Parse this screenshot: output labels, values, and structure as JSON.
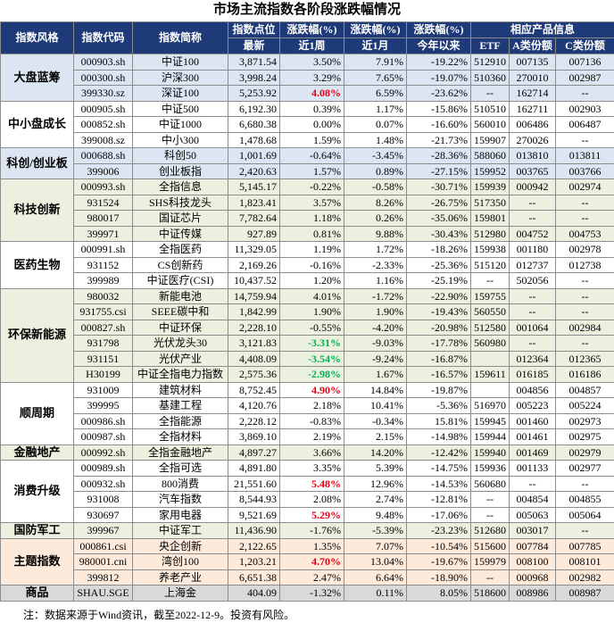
{
  "title": "市场主流指数各阶段涨跌幅情况",
  "header": {
    "style": "指数风格",
    "code": "指数代码",
    "name": "指数简称",
    "level": [
      "指数点位",
      "最新"
    ],
    "change": "涨跌幅(%)",
    "periods": [
      "近1周",
      "近1月",
      "今年以来"
    ],
    "products": "相应产品信息",
    "product_cols": [
      "ETF",
      "A类份额",
      "C类份额"
    ]
  },
  "table": {
    "groups": [
      {
        "name": "大盘蓝筹",
        "rows": [
          {
            "cells": [
              "000903.sh",
              "中证100",
              "3,871.54",
              "3.50%",
              "7.91%",
              "-19.22%",
              "512910",
              "007135",
              "007136"
            ]
          },
          {
            "cells": [
              "000300.sh",
              "沪深300",
              "3,998.24",
              "3.29%",
              "7.65%",
              "-19.07%",
              "510360",
              "270010",
              "002987"
            ]
          },
          {
            "cells": [
              "399330.sz",
              "深证100",
              "5,253.92",
              "4.08%",
              "6.59%",
              "-23.62%",
              "--",
              "162714",
              "--"
            ],
            "week_color": "#e60012"
          }
        ]
      },
      {
        "name": "中小盘成长",
        "rows": [
          {
            "cells": [
              "000905.sh",
              "中证500",
              "6,192.30",
              "0.39%",
              "1.17%",
              "-15.86%",
              "510510",
              "162711",
              "002903"
            ]
          },
          {
            "cells": [
              "000852.sh",
              "中证1000",
              "6,680.38",
              "0.00%",
              "0.07%",
              "-16.60%",
              "560010",
              "006486",
              "006487"
            ]
          },
          {
            "cells": [
              "399008.sz",
              "中小300",
              "1,478.68",
              "1.59%",
              "1.48%",
              "-21.73%",
              "159907",
              "270026",
              "--"
            ]
          }
        ]
      },
      {
        "name": "科创/创业板",
        "rows": [
          {
            "cells": [
              "000688.sh",
              "科创50",
              "1,001.69",
              "-0.64%",
              "-3.45%",
              "-28.36%",
              "588060",
              "013810",
              "013811"
            ]
          },
          {
            "cells": [
              "399006",
              "创业板指",
              "2,420.63",
              "1.57%",
              "0.89%",
              "-27.15%",
              "159952",
              "003765",
              "003766"
            ]
          }
        ]
      },
      {
        "name": "科技创新",
        "rows": [
          {
            "cells": [
              "000993.sh",
              "全指信息",
              "5,145.17",
              "-0.22%",
              "-0.58%",
              "-30.71%",
              "159939",
              "000942",
              "002974"
            ]
          },
          {
            "cells": [
              "931524",
              "SHS科技龙头",
              "1,823.41",
              "3.57%",
              "8.26%",
              "-26.75%",
              "517350",
              "--",
              "--"
            ]
          },
          {
            "cells": [
              "980017",
              "国证芯片",
              "7,782.64",
              "1.18%",
              "0.26%",
              "-35.06%",
              "159801",
              "--",
              "--"
            ]
          },
          {
            "cells": [
              "399971",
              "中证传媒",
              "927.89",
              "0.81%",
              "9.88%",
              "-30.43%",
              "512980",
              "004752",
              "004753"
            ]
          }
        ]
      },
      {
        "name": "医药生物",
        "rows": [
          {
            "cells": [
              "000991.sh",
              "全指医药",
              "11,329.05",
              "1.19%",
              "1.72%",
              "-18.26%",
              "159938",
              "001180",
              "002978"
            ]
          },
          {
            "cells": [
              "931152",
              "CS创新药",
              "2,169.26",
              "-0.16%",
              "-2.33%",
              "-25.36%",
              "515120",
              "012737",
              "012738"
            ]
          },
          {
            "cells": [
              "399989",
              "中证医疗(CSI)",
              "10,437.52",
              "1.20%",
              "1.16%",
              "-25.19%",
              "--",
              "502056",
              "--"
            ]
          }
        ]
      },
      {
        "name": "环保新能源",
        "rows": [
          {
            "cells": [
              "980032",
              "新能电池",
              "14,759.94",
              "4.01%",
              "-1.72%",
              "-22.90%",
              "159755",
              "--",
              "--"
            ]
          },
          {
            "cells": [
              "931755.csi",
              "SEEE碳中和",
              "1,842.99",
              "1.90%",
              "1.90%",
              "-19.43%",
              "560550",
              "--",
              "--"
            ]
          },
          {
            "cells": [
              "000827.sh",
              "中证环保",
              "2,228.10",
              "-0.55%",
              "-4.20%",
              "-20.98%",
              "512580",
              "001064",
              "002984"
            ]
          },
          {
            "cells": [
              "931798",
              "光伏龙头30",
              "3,121.83",
              "-3.31%",
              "-9.03%",
              "-17.78%",
              "560980",
              "--",
              "--"
            ],
            "week_color": "#00b050"
          },
          {
            "cells": [
              "931151",
              "光伏产业",
              "4,408.09",
              "-3.54%",
              "-9.24%",
              "-16.87%",
              null,
              "012364",
              "012365"
            ],
            "week_color": "#00b050"
          },
          {
            "cells": [
              "H30199",
              "中证全指电力指数",
              "2,575.36",
              "-2.98%",
              "1.67%",
              "-16.57%",
              "159611",
              "016185",
              "016186"
            ],
            "week_color": "#00b050"
          }
        ]
      },
      {
        "name": "顺周期",
        "rows": [
          {
            "cells": [
              "931009",
              "建筑材料",
              "8,752.45",
              "4.90%",
              "14.84%",
              "-19.87%",
              null,
              "004856",
              "004857"
            ],
            "week_color": "#e60012"
          },
          {
            "cells": [
              "399995",
              "基建工程",
              "4,120.76",
              "2.18%",
              "10.41%",
              "-5.36%",
              "516970",
              "005223",
              "005224"
            ]
          },
          {
            "cells": [
              "000986.sh",
              "全指能源",
              "2,228.12",
              "-0.83%",
              "-0.34%",
              "15.81%",
              "159945",
              "001460",
              "002973"
            ]
          },
          {
            "cells": [
              "000987.sh",
              "全指材料",
              "3,869.10",
              "2.19%",
              "2.15%",
              "-14.98%",
              "159944",
              "001461",
              "002975"
            ]
          }
        ]
      },
      {
        "name": "金融地产",
        "rows": [
          {
            "cells": [
              "000992.sh",
              "全指金融地产",
              "4,897.27",
              "3.66%",
              "14.20%",
              "-12.42%",
              "159940",
              "001469",
              "002979"
            ]
          }
        ]
      },
      {
        "name": "消费升级",
        "rows": [
          {
            "cells": [
              "000989.sh",
              "全指可选",
              "4,891.80",
              "3.35%",
              "5.39%",
              "-14.75%",
              "159936",
              "001133",
              "002977"
            ]
          },
          {
            "cells": [
              "000932.sh",
              "800消费",
              "21,551.60",
              "5.48%",
              "12.96%",
              "-14.53%",
              "560680",
              "--",
              "--"
            ],
            "week_color": "#e60012"
          },
          {
            "cells": [
              "931008",
              "汽车指数",
              "8,544.93",
              "2.08%",
              "2.74%",
              "-12.81%",
              "--",
              "004854",
              "004855"
            ]
          },
          {
            "cells": [
              "930697",
              "家用电器",
              "9,521.69",
              "5.29%",
              "9.48%",
              "-17.06%",
              "--",
              "005063",
              "005064"
            ],
            "week_color": "#e60012"
          }
        ]
      },
      {
        "name": "国防军工",
        "rows": [
          {
            "cells": [
              "399967",
              "中证军工",
              "11,436.90",
              "-1.76%",
              "-5.39%",
              "-23.23%",
              "512680",
              "003017",
              "--"
            ]
          }
        ]
      },
      {
        "name": "主题指数",
        "rows": [
          {
            "cells": [
              "000861.csi",
              "央企创新",
              "2,122.65",
              "1.35%",
              "7.07%",
              "-10.54%",
              "515600",
              "007784",
              "007785"
            ]
          },
          {
            "cells": [
              "980001.cni",
              "湾创100",
              "1,203.21",
              "4.70%",
              "13.04%",
              "-19.67%",
              "159979",
              "008100",
              "008101"
            ],
            "week_color": "#e60012"
          },
          {
            "cells": [
              "399812",
              "养老产业",
              "6,651.38",
              "2.47%",
              "6.64%",
              "-18.90%",
              "--",
              "000968",
              "002982"
            ]
          }
        ]
      },
      {
        "name": "商品",
        "rows": [
          {
            "cells": [
              "SHAU.SGE",
              "上海金",
              "404.09",
              "-1.32%",
              "0.11%",
              "8.05%",
              "518600",
              "008986",
              "008987"
            ]
          }
        ]
      }
    ]
  },
  "footnote": "注：数据来源于Wind资讯，截至2022-12-9。投资有风险。"
}
